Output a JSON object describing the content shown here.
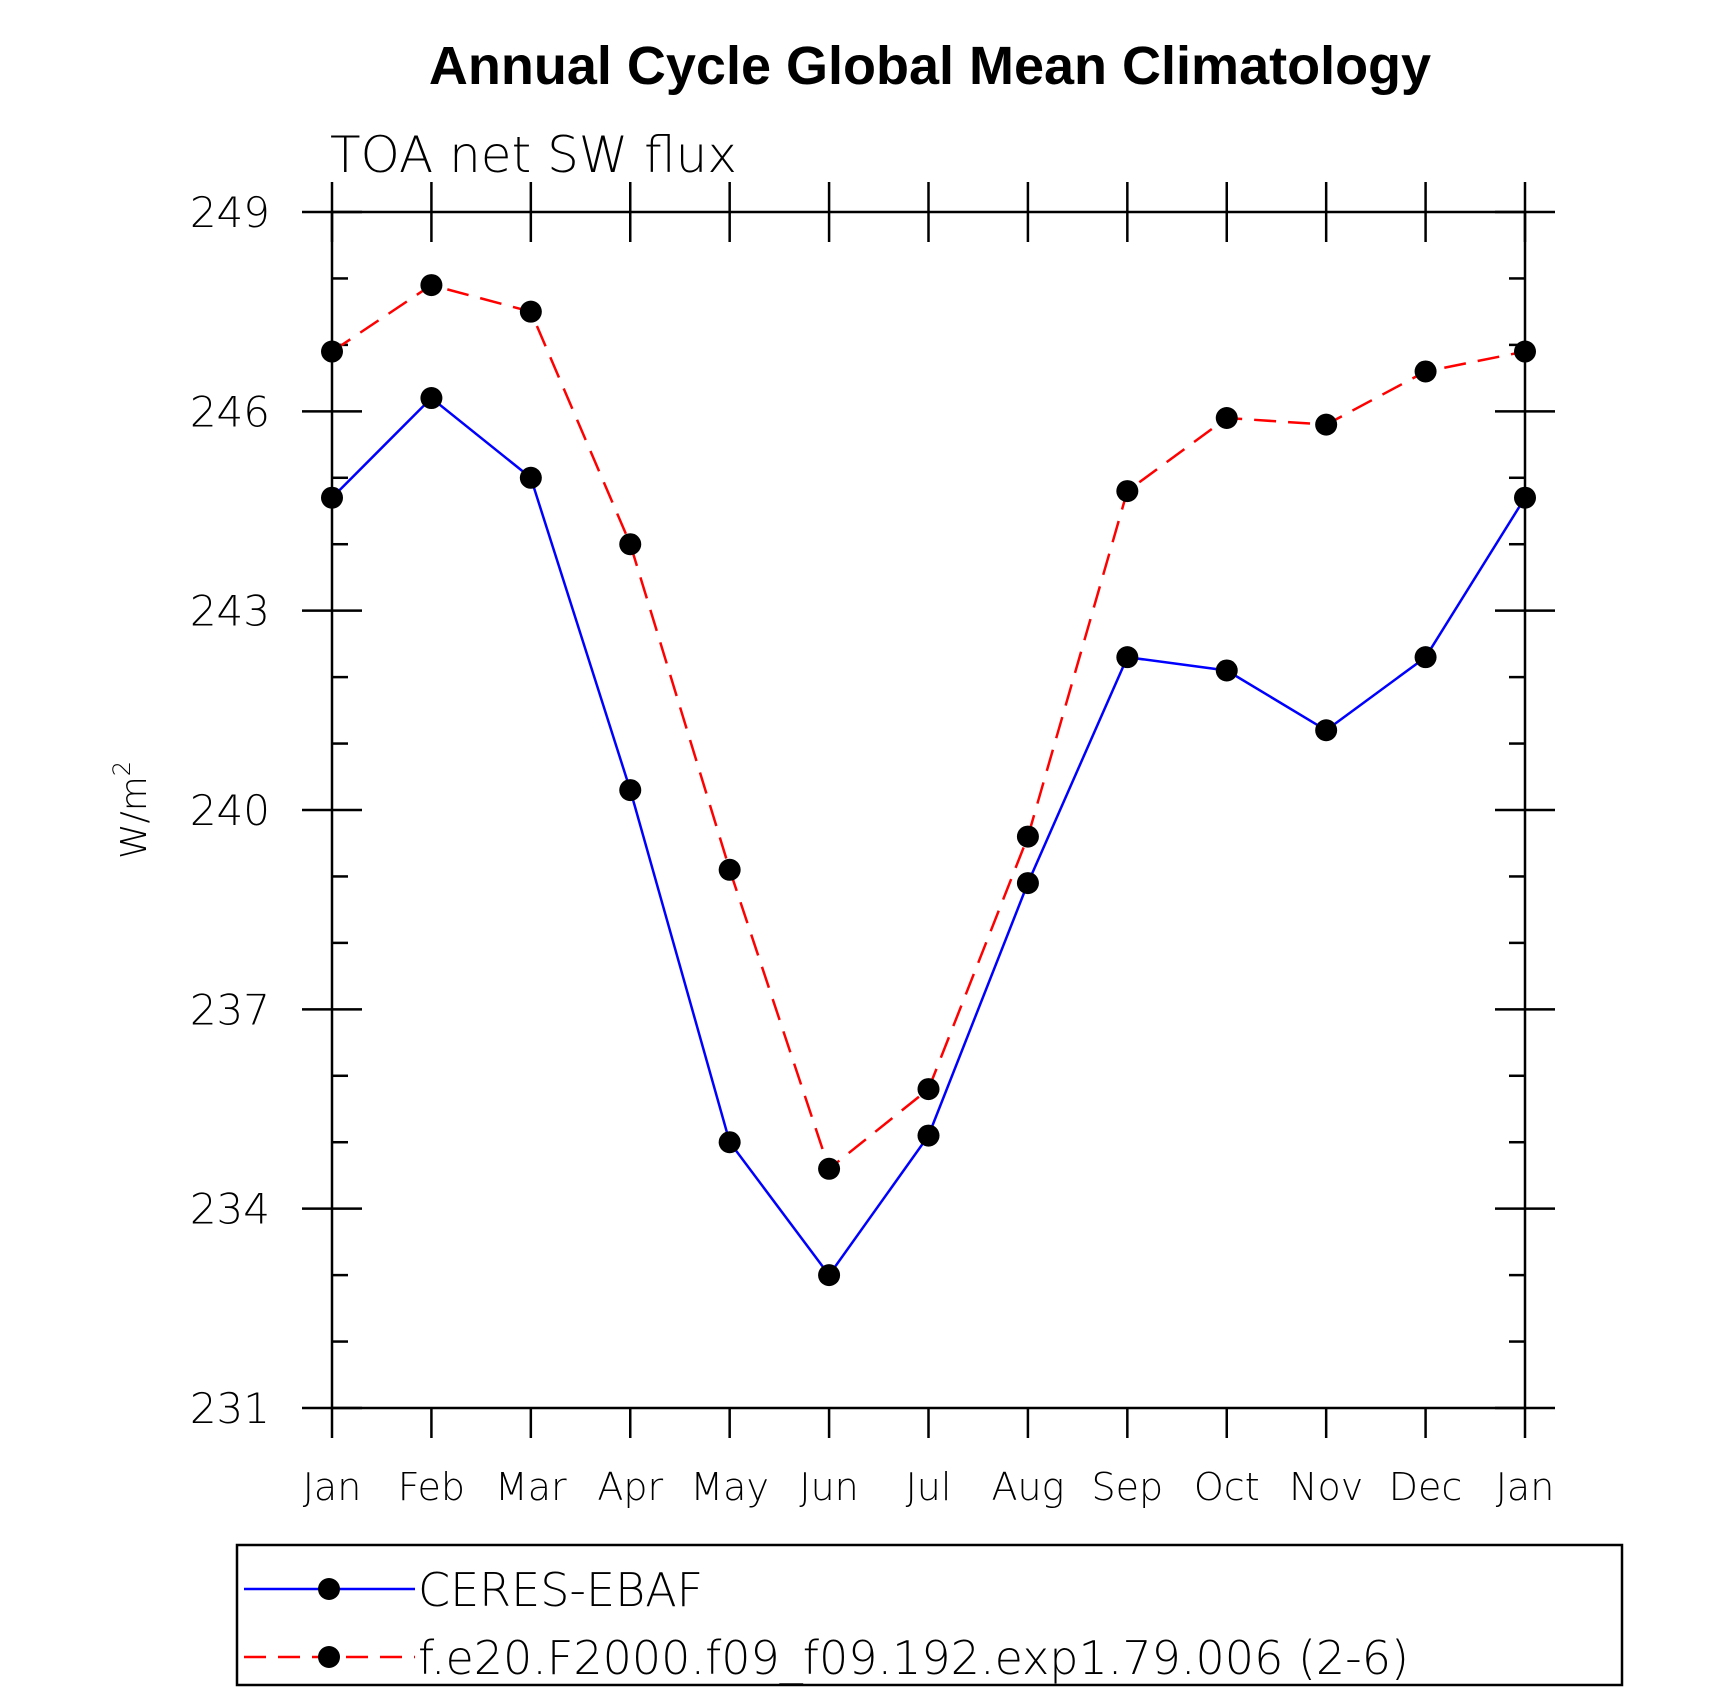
{
  "chart_data": {
    "type": "line",
    "title": "Annual Cycle Global Mean Climatology",
    "subtitle": "TOA net SW flux",
    "ylabel": "W/m",
    "ylabel_sup": "2",
    "xlabel": "",
    "categories": [
      "Jan",
      "Feb",
      "Mar",
      "Apr",
      "May",
      "Jun",
      "Jul",
      "Aug",
      "Sep",
      "Oct",
      "Nov",
      "Dec",
      "Jan"
    ],
    "yticks": [
      "231",
      "234",
      "237",
      "240",
      "243",
      "246",
      "249"
    ],
    "ylim": [
      231,
      249
    ],
    "series": [
      {
        "name": "CERES-EBAF",
        "color": "#0000ff",
        "dash": "solid",
        "marker": "filled-circle",
        "values": [
          244.7,
          246.2,
          245.0,
          240.3,
          235.0,
          233.0,
          235.1,
          238.9,
          242.3,
          242.1,
          241.2,
          242.3,
          244.7
        ]
      },
      {
        "name": "f.e20.F2000.f09_f09.192.exp1.79.006 (2-6)",
        "color": "#ff0000",
        "dash": "dashed",
        "marker": "filled-circle",
        "values": [
          246.9,
          247.9,
          247.5,
          244.0,
          239.1,
          234.6,
          235.8,
          239.6,
          244.8,
          245.9,
          245.8,
          246.6,
          246.9
        ]
      }
    ],
    "legend_position": "bottom"
  }
}
